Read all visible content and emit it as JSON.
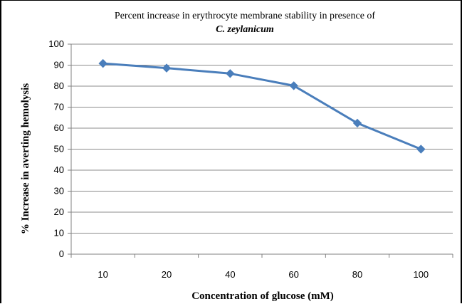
{
  "chart_data": {
    "type": "line",
    "title": "Percent increase in erythrocyte membrane stability in presence of",
    "subtitle": "C. zeylanicum",
    "xlabel": "Concentration of glucose (mM)",
    "ylabel": "% Increase in averting hemolysis",
    "categories": [
      "10",
      "20",
      "40",
      "60",
      "80",
      "100"
    ],
    "series": [
      {
        "values": [
          90.8,
          88.6,
          86.0,
          80.2,
          62.4,
          50.0
        ],
        "color": "#4a7ebb",
        "marker": "diamond"
      }
    ],
    "ylim": [
      0,
      100
    ],
    "yticks": [
      0,
      10,
      20,
      30,
      40,
      50,
      60,
      70,
      80,
      90,
      100
    ],
    "grid": true,
    "legend": "none"
  }
}
